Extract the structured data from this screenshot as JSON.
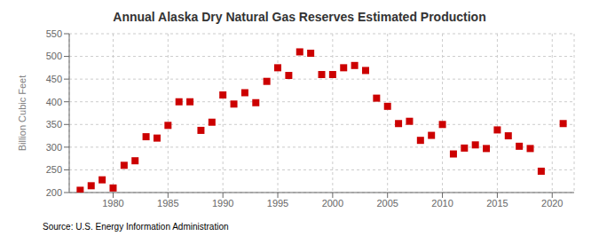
{
  "chart_data": {
    "type": "scatter",
    "title": "Annual Alaska Dry Natural Gas Reserves Estimated Production",
    "y_label": "Billion Cubic Feet",
    "source": "Source: U.S. Energy Information Administration",
    "x": [
      1977,
      1978,
      1979,
      1980,
      1981,
      1982,
      1983,
      1984,
      1985,
      1986,
      1987,
      1988,
      1989,
      1990,
      1991,
      1992,
      1993,
      1994,
      1995,
      1996,
      1997,
      1998,
      1999,
      2000,
      2001,
      2002,
      2003,
      2004,
      2005,
      2006,
      2007,
      2008,
      2009,
      2010,
      2011,
      2012,
      2013,
      2014,
      2015,
      2016,
      2017,
      2018,
      2019,
      2021
    ],
    "values": [
      205,
      215,
      228,
      210,
      260,
      270,
      323,
      320,
      348,
      400,
      400,
      337,
      355,
      415,
      395,
      420,
      398,
      445,
      475,
      458,
      510,
      507,
      460,
      460,
      475,
      480,
      469,
      408,
      390,
      352,
      357,
      315,
      326,
      350,
      285,
      298,
      305,
      297,
      338,
      325,
      302,
      297,
      247,
      352
    ],
    "color": "#cc0000",
    "marker": "square",
    "xlim": [
      1976,
      2022
    ],
    "ylim": [
      200,
      550
    ],
    "xticks": [
      1980,
      1985,
      1990,
      1995,
      2000,
      2005,
      2010,
      2015,
      2020
    ],
    "yticks": [
      200,
      250,
      300,
      350,
      400,
      450,
      500,
      550
    ],
    "grid": true
  }
}
